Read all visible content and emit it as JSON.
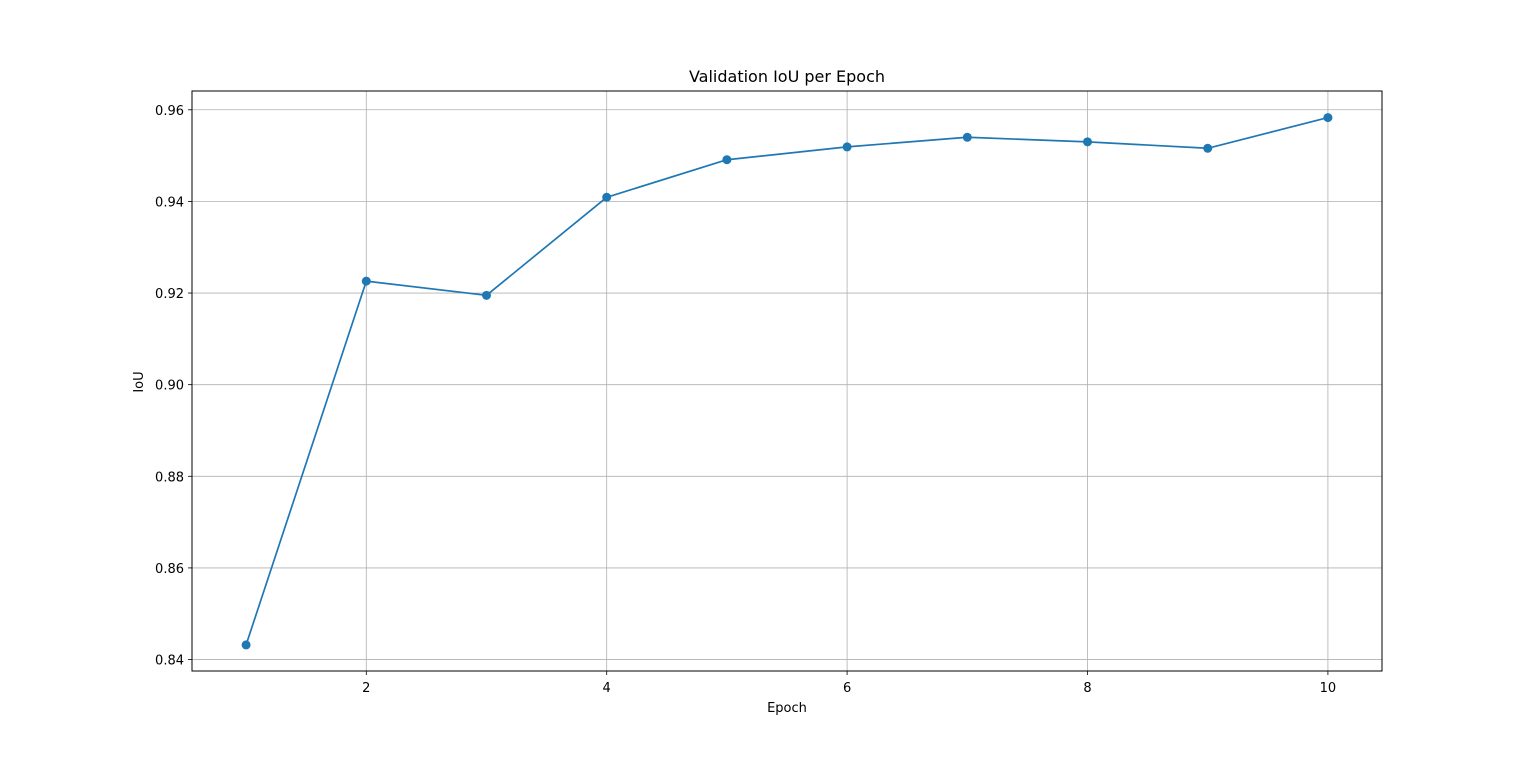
{
  "chart_data": {
    "type": "line",
    "title": "Validation IoU per Epoch",
    "xlabel": "Epoch",
    "ylabel": "IoU",
    "x": [
      1,
      2,
      3,
      4,
      5,
      6,
      7,
      8,
      9,
      10
    ],
    "series": [
      {
        "values": [
          0.8432,
          0.9226,
          0.9195,
          0.9409,
          0.9491,
          0.9519,
          0.954,
          0.953,
          0.9516,
          0.9583
        ],
        "color": "#1f77b4",
        "marker": "circle"
      }
    ],
    "xlim": [
      0.55,
      10.45
    ],
    "ylim": [
      0.8375,
      0.9641
    ],
    "xticks": [
      2,
      4,
      6,
      8,
      10
    ],
    "xtick_labels": [
      "2",
      "4",
      "6",
      "8",
      "10"
    ],
    "yticks": [
      0.84,
      0.86,
      0.88,
      0.9,
      0.92,
      0.94,
      0.96
    ],
    "ytick_labels": [
      "0.84",
      "0.86",
      "0.88",
      "0.90",
      "0.92",
      "0.94",
      "0.96"
    ],
    "grid": true,
    "legend": false
  }
}
